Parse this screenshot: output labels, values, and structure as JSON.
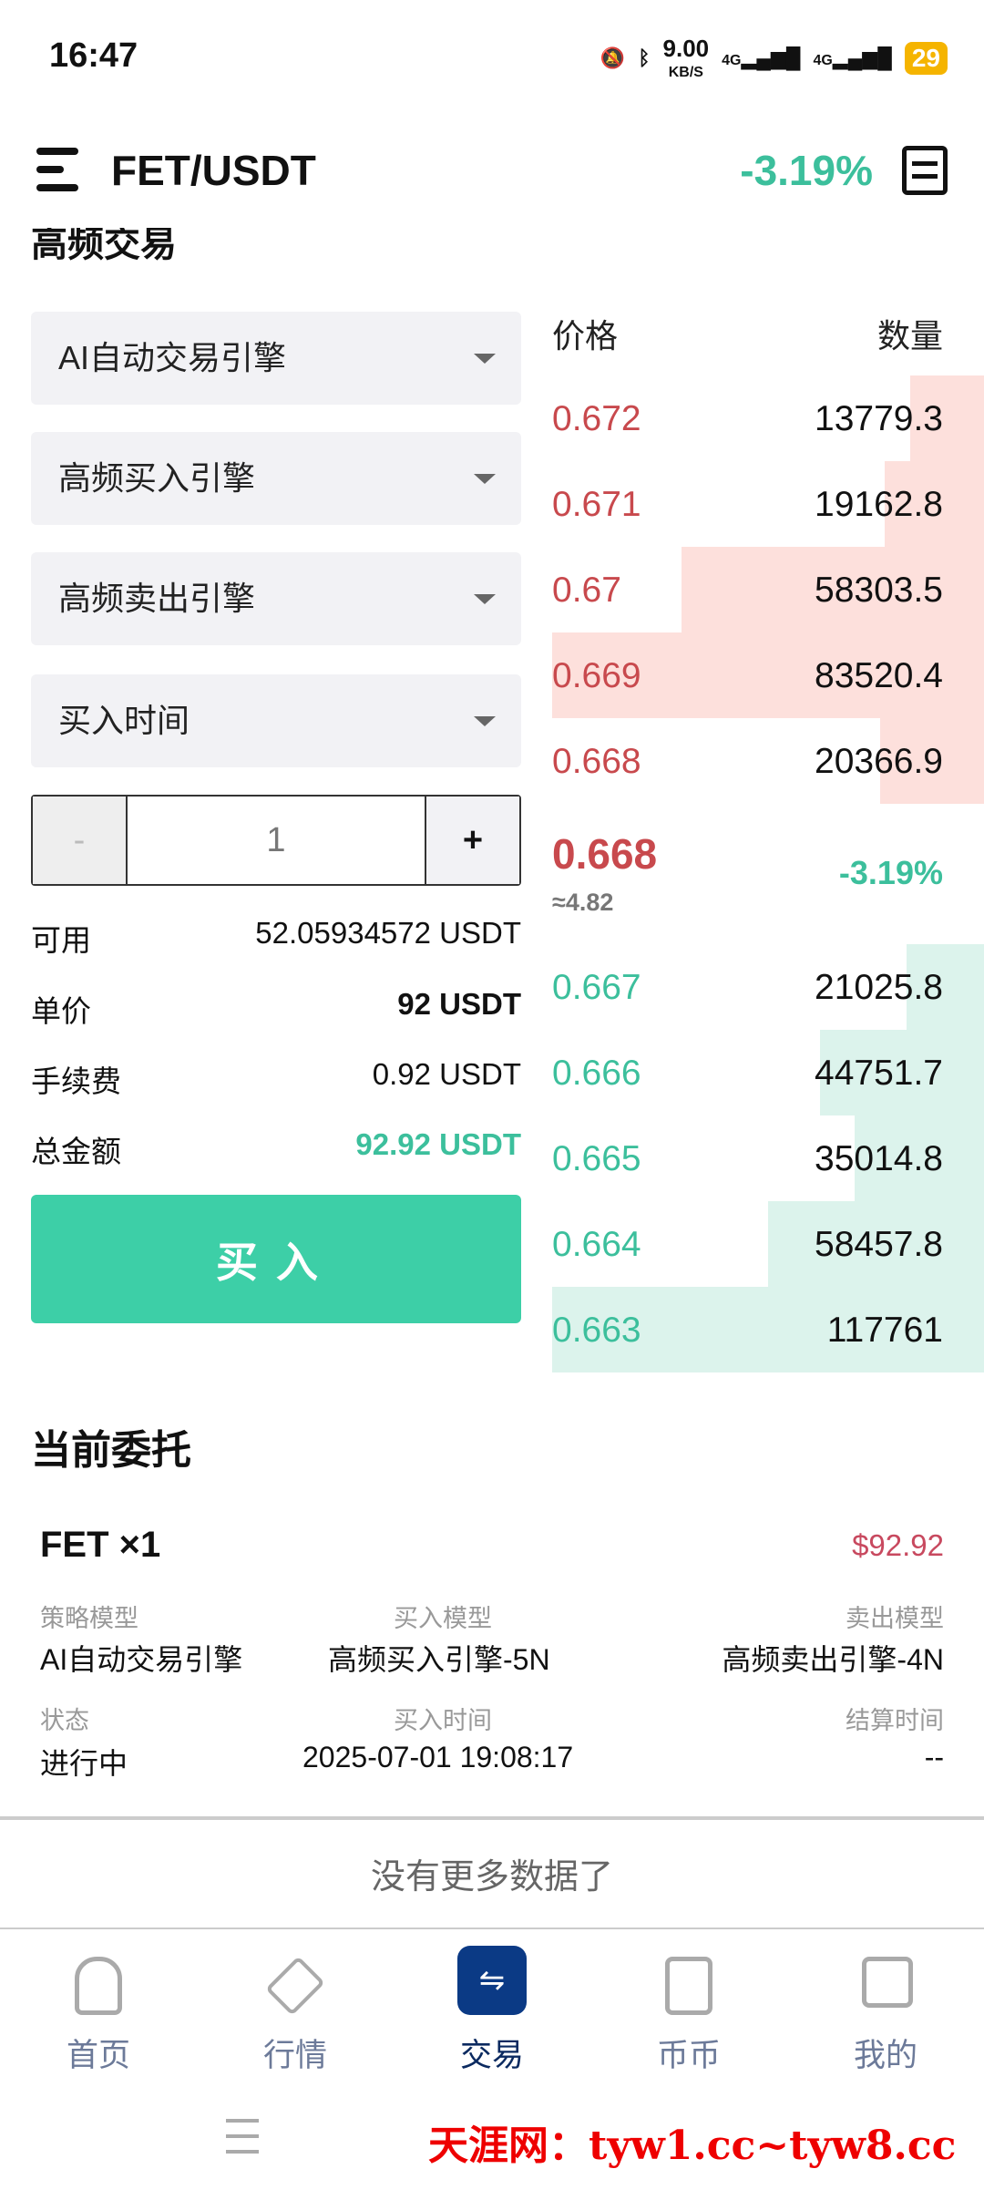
{
  "status_bar": {
    "time": "16:47",
    "net_speed": "9.00",
    "net_unit": "KB/S",
    "net1": "4G",
    "net2": "4G",
    "battery": "29"
  },
  "header": {
    "pair": "FET/USDT",
    "change": "-3.19%"
  },
  "section_title": "高频交易",
  "form": {
    "dropdowns": [
      {
        "value": "AI自动交易引擎"
      },
      {
        "value": "高频买入引擎"
      },
      {
        "value": "高频卖出引擎"
      },
      {
        "value": "买入时间"
      }
    ],
    "stepper": {
      "minus": "-",
      "value": "1",
      "plus": "+"
    },
    "rows": [
      {
        "label": "可用",
        "value": "52.05934572 USDT"
      },
      {
        "label": "单价",
        "value": "92 USDT"
      },
      {
        "label": "手续费",
        "value": "0.92 USDT"
      },
      {
        "label": "总金额",
        "value": "92.92 USDT"
      }
    ],
    "buy_label": "买入"
  },
  "orderbook": {
    "price_header": "价格",
    "qty_header": "数量",
    "asks": [
      {
        "price": "0.672",
        "qty": "13779.3",
        "depth": 0.17
      },
      {
        "price": "0.671",
        "qty": "19162.8",
        "depth": 0.23
      },
      {
        "price": "0.67",
        "qty": "58303.5",
        "depth": 0.7
      },
      {
        "price": "0.669",
        "qty": "83520.4",
        "depth": 1.0
      },
      {
        "price": "0.668",
        "qty": "20366.9",
        "depth": 0.24
      }
    ],
    "last_price": "0.668",
    "approx": "≈4.82",
    "change": "-3.19%",
    "bids": [
      {
        "price": "0.667",
        "qty": "21025.8",
        "depth": 0.18
      },
      {
        "price": "0.666",
        "qty": "44751.7",
        "depth": 0.38
      },
      {
        "price": "0.665",
        "qty": "35014.8",
        "depth": 0.3
      },
      {
        "price": "0.664",
        "qty": "58457.8",
        "depth": 0.5
      },
      {
        "price": "0.663",
        "qty": "117761",
        "depth": 1.0
      }
    ],
    "colors": {
      "ask": "#c8494d",
      "bid": "#3cbf9c",
      "ask_bar": "#fde0dc",
      "bid_bar": "#dcf3ec"
    }
  },
  "orders": {
    "title": "当前委托",
    "item": {
      "name": "FET ×1",
      "amount": "$92.92",
      "strategy_label": "策略模型",
      "strategy": "AI自动交易引擎",
      "buy_model_label": "买入模型",
      "buy_model": "高频买入引擎-5N",
      "sell_model_label": "卖出模型",
      "sell_model": "高频卖出引擎-4N",
      "status_label": "状态",
      "status": "进行中",
      "buy_time_label": "买入时间",
      "buy_time": "2025-07-01 19:08:17",
      "settle_label": "结算时间",
      "settle": "--"
    },
    "no_more": "没有更多数据了"
  },
  "nav": [
    {
      "label": "首页",
      "icon": "home-icon"
    },
    {
      "label": "行情",
      "icon": "cube-icon"
    },
    {
      "label": "交易",
      "icon": "exchange-icon",
      "active": true
    },
    {
      "label": "币币",
      "icon": "inbox-icon"
    },
    {
      "label": "我的",
      "icon": "wallet-icon"
    }
  ],
  "watermark": "天涯网：tyw1.cc~tyw8.cc"
}
